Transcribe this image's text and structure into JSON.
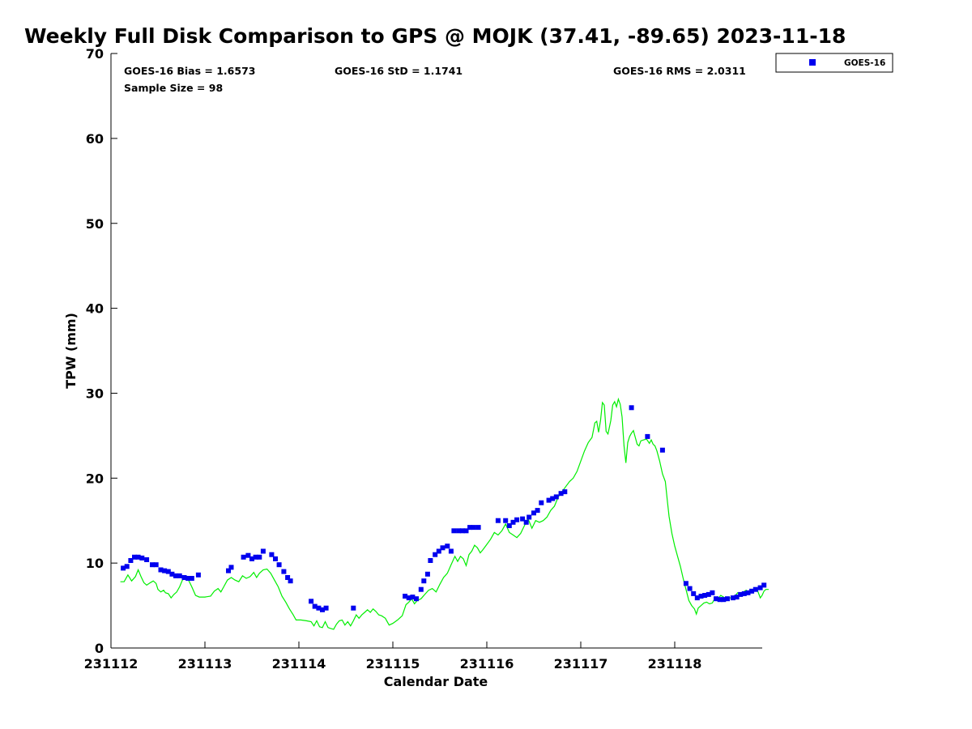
{
  "chart_data": {
    "type": "scatter",
    "title": "Weekly Full Disk Comparison to GPS @ MOJK (37.41, -89.65) 2023-11-18",
    "xlabel": "Calendar Date",
    "ylabel": "TPW (mm)",
    "x_unit": "days since 231112 00Z",
    "xlim": [
      0,
      6.95
    ],
    "ylim": [
      0,
      70
    ],
    "x_ticks": [
      0,
      1,
      2,
      3,
      4,
      5,
      6
    ],
    "x_tick_labels": [
      "231112",
      "231113",
      "231114",
      "231115",
      "231116",
      "231117",
      "231118"
    ],
    "y_ticks": [
      0,
      10,
      20,
      30,
      40,
      50,
      60,
      70
    ],
    "y_tick_labels": [
      "0",
      "10",
      "20",
      "30",
      "40",
      "50",
      "60",
      "70"
    ],
    "stats": {
      "bias": "GOES-16 Bias = 1.6573",
      "std": "GOES-16 StD = 1.1741",
      "rms": "GOES-16 RMS = 2.0311",
      "sample": "Sample Size = 98"
    },
    "legend": {
      "position": "outside-top-right",
      "entries": [
        "GOES-16"
      ]
    },
    "grid": false,
    "series": [
      {
        "name": "GOES-16",
        "kind": "markers",
        "marker": "square",
        "color": "#0000ee",
        "points": [
          [
            0.13,
            9.4
          ],
          [
            0.17,
            9.6
          ],
          [
            0.21,
            10.3
          ],
          [
            0.25,
            10.7
          ],
          [
            0.29,
            10.7
          ],
          [
            0.33,
            10.6
          ],
          [
            0.38,
            10.4
          ],
          [
            0.44,
            9.8
          ],
          [
            0.48,
            9.8
          ],
          [
            0.53,
            9.2
          ],
          [
            0.57,
            9.1
          ],
          [
            0.61,
            9.0
          ],
          [
            0.65,
            8.7
          ],
          [
            0.69,
            8.5
          ],
          [
            0.73,
            8.5
          ],
          [
            0.78,
            8.3
          ],
          [
            0.82,
            8.2
          ],
          [
            0.86,
            8.2
          ],
          [
            0.93,
            8.6
          ],
          [
            1.25,
            9.1
          ],
          [
            1.28,
            9.5
          ],
          [
            1.41,
            10.7
          ],
          [
            1.46,
            10.9
          ],
          [
            1.5,
            10.5
          ],
          [
            1.54,
            10.7
          ],
          [
            1.58,
            10.7
          ],
          [
            1.62,
            11.4
          ],
          [
            1.71,
            11.0
          ],
          [
            1.75,
            10.5
          ],
          [
            1.79,
            9.8
          ],
          [
            1.84,
            9.0
          ],
          [
            1.88,
            8.3
          ],
          [
            1.91,
            7.9
          ],
          [
            2.13,
            5.5
          ],
          [
            2.17,
            4.9
          ],
          [
            2.21,
            4.7
          ],
          [
            2.25,
            4.5
          ],
          [
            2.29,
            4.7
          ],
          [
            2.58,
            4.7
          ],
          [
            3.13,
            6.1
          ],
          [
            3.17,
            5.9
          ],
          [
            3.21,
            6.0
          ],
          [
            3.25,
            5.8
          ],
          [
            3.3,
            6.9
          ],
          [
            3.33,
            7.9
          ],
          [
            3.37,
            8.7
          ],
          [
            3.4,
            10.3
          ],
          [
            3.45,
            11.0
          ],
          [
            3.49,
            11.4
          ],
          [
            3.53,
            11.8
          ],
          [
            3.58,
            12.0
          ],
          [
            3.62,
            11.4
          ],
          [
            3.65,
            13.8
          ],
          [
            3.7,
            13.8
          ],
          [
            3.74,
            13.8
          ],
          [
            3.78,
            13.8
          ],
          [
            3.82,
            14.2
          ],
          [
            3.86,
            14.2
          ],
          [
            3.91,
            14.2
          ],
          [
            4.12,
            15.0
          ],
          [
            4.2,
            15.0
          ],
          [
            4.24,
            14.4
          ],
          [
            4.28,
            14.8
          ],
          [
            4.32,
            15.1
          ],
          [
            4.38,
            15.2
          ],
          [
            4.42,
            14.8
          ],
          [
            4.45,
            15.4
          ],
          [
            4.5,
            15.9
          ],
          [
            4.54,
            16.2
          ],
          [
            4.58,
            17.1
          ],
          [
            4.66,
            17.4
          ],
          [
            4.7,
            17.6
          ],
          [
            4.74,
            17.8
          ],
          [
            4.79,
            18.2
          ],
          [
            4.83,
            18.4
          ],
          [
            5.54,
            28.3
          ],
          [
            5.71,
            24.9
          ],
          [
            5.87,
            23.3
          ],
          [
            6.12,
            7.6
          ],
          [
            6.16,
            7.0
          ],
          [
            6.2,
            6.4
          ],
          [
            6.24,
            5.9
          ],
          [
            6.28,
            6.1
          ],
          [
            6.32,
            6.2
          ],
          [
            6.36,
            6.3
          ],
          [
            6.4,
            6.5
          ],
          [
            6.44,
            5.8
          ],
          [
            6.48,
            5.7
          ],
          [
            6.52,
            5.7
          ],
          [
            6.56,
            5.8
          ],
          [
            6.62,
            5.9
          ],
          [
            6.66,
            6.0
          ],
          [
            6.7,
            6.3
          ],
          [
            6.74,
            6.4
          ],
          [
            6.78,
            6.5
          ],
          [
            6.82,
            6.7
          ],
          [
            6.86,
            6.9
          ],
          [
            6.91,
            7.1
          ],
          [
            6.95,
            7.4
          ]
        ]
      },
      {
        "name": "GPS",
        "kind": "line",
        "color": "#00ee00",
        "points": [
          [
            0.1,
            7.8
          ],
          [
            0.14,
            7.8
          ],
          [
            0.18,
            8.6
          ],
          [
            0.22,
            7.9
          ],
          [
            0.26,
            8.4
          ],
          [
            0.29,
            9.2
          ],
          [
            0.32,
            8.4
          ],
          [
            0.35,
            7.7
          ],
          [
            0.38,
            7.4
          ],
          [
            0.42,
            7.7
          ],
          [
            0.45,
            7.9
          ],
          [
            0.48,
            7.6
          ],
          [
            0.5,
            6.9
          ],
          [
            0.53,
            6.6
          ],
          [
            0.56,
            6.8
          ],
          [
            0.58,
            6.5
          ],
          [
            0.61,
            6.4
          ],
          [
            0.64,
            5.9
          ],
          [
            0.67,
            6.3
          ],
          [
            0.7,
            6.6
          ],
          [
            0.73,
            7.2
          ],
          [
            0.76,
            8.0
          ],
          [
            0.8,
            8.3
          ],
          [
            0.83,
            7.9
          ],
          [
            0.86,
            7.2
          ],
          [
            0.9,
            6.2
          ],
          [
            0.94,
            6.0
          ],
          [
            1.0,
            6.0
          ],
          [
            1.06,
            6.1
          ],
          [
            1.1,
            6.7
          ],
          [
            1.14,
            7.0
          ],
          [
            1.17,
            6.6
          ],
          [
            1.2,
            7.2
          ],
          [
            1.24,
            8.0
          ],
          [
            1.28,
            8.3
          ],
          [
            1.32,
            8.0
          ],
          [
            1.36,
            7.8
          ],
          [
            1.4,
            8.5
          ],
          [
            1.44,
            8.2
          ],
          [
            1.48,
            8.4
          ],
          [
            1.52,
            8.9
          ],
          [
            1.55,
            8.3
          ],
          [
            1.58,
            8.8
          ],
          [
            1.62,
            9.2
          ],
          [
            1.66,
            9.3
          ],
          [
            1.7,
            8.8
          ],
          [
            1.74,
            8.0
          ],
          [
            1.78,
            7.2
          ],
          [
            1.82,
            6.1
          ],
          [
            1.86,
            5.4
          ],
          [
            1.9,
            4.6
          ],
          [
            1.94,
            3.9
          ],
          [
            1.97,
            3.3
          ],
          [
            2.02,
            3.3
          ],
          [
            2.08,
            3.2
          ],
          [
            2.13,
            3.1
          ],
          [
            2.16,
            2.6
          ],
          [
            2.19,
            3.2
          ],
          [
            2.22,
            2.5
          ],
          [
            2.25,
            2.4
          ],
          [
            2.28,
            3.1
          ],
          [
            2.31,
            2.4
          ],
          [
            2.34,
            2.3
          ],
          [
            2.37,
            2.2
          ],
          [
            2.4,
            2.8
          ],
          [
            2.43,
            3.2
          ],
          [
            2.46,
            3.3
          ],
          [
            2.49,
            2.7
          ],
          [
            2.52,
            3.1
          ],
          [
            2.55,
            2.6
          ],
          [
            2.58,
            3.2
          ],
          [
            2.61,
            3.9
          ],
          [
            2.64,
            3.5
          ],
          [
            2.67,
            3.9
          ],
          [
            2.7,
            4.2
          ],
          [
            2.73,
            4.5
          ],
          [
            2.76,
            4.2
          ],
          [
            2.79,
            4.6
          ],
          [
            2.82,
            4.3
          ],
          [
            2.85,
            3.9
          ],
          [
            2.88,
            3.8
          ],
          [
            2.92,
            3.5
          ],
          [
            2.96,
            2.7
          ],
          [
            3.0,
            2.9
          ],
          [
            3.05,
            3.3
          ],
          [
            3.1,
            3.8
          ],
          [
            3.14,
            5.1
          ],
          [
            3.17,
            5.4
          ],
          [
            3.2,
            5.8
          ],
          [
            3.23,
            5.2
          ],
          [
            3.26,
            5.6
          ],
          [
            3.3,
            5.8
          ],
          [
            3.34,
            6.3
          ],
          [
            3.38,
            6.8
          ],
          [
            3.42,
            7.0
          ],
          [
            3.46,
            6.6
          ],
          [
            3.5,
            7.5
          ],
          [
            3.54,
            8.3
          ],
          [
            3.58,
            8.8
          ],
          [
            3.62,
            9.8
          ],
          [
            3.66,
            10.8
          ],
          [
            3.69,
            10.2
          ],
          [
            3.72,
            10.8
          ],
          [
            3.75,
            10.5
          ],
          [
            3.78,
            9.7
          ],
          [
            3.81,
            11.0
          ],
          [
            3.84,
            11.4
          ],
          [
            3.87,
            12.1
          ],
          [
            3.9,
            11.8
          ],
          [
            3.93,
            11.2
          ],
          [
            3.96,
            11.6
          ],
          [
            4.0,
            12.2
          ],
          [
            4.04,
            12.8
          ],
          [
            4.08,
            13.6
          ],
          [
            4.12,
            13.3
          ],
          [
            4.16,
            13.8
          ],
          [
            4.2,
            14.6
          ],
          [
            4.24,
            13.6
          ],
          [
            4.28,
            13.3
          ],
          [
            4.32,
            13.0
          ],
          [
            4.36,
            13.5
          ],
          [
            4.4,
            14.4
          ],
          [
            4.44,
            15.2
          ],
          [
            4.48,
            14.1
          ],
          [
            4.52,
            15.0
          ],
          [
            4.56,
            14.8
          ],
          [
            4.6,
            15.0
          ],
          [
            4.64,
            15.4
          ],
          [
            4.68,
            16.2
          ],
          [
            4.72,
            16.7
          ],
          [
            4.76,
            17.8
          ],
          [
            4.8,
            18.4
          ],
          [
            4.84,
            19.0
          ],
          [
            4.88,
            19.6
          ],
          [
            4.92,
            20.0
          ],
          [
            4.96,
            20.8
          ],
          [
            5.0,
            22.0
          ],
          [
            5.04,
            23.2
          ],
          [
            5.08,
            24.2
          ],
          [
            5.12,
            24.8
          ],
          [
            5.15,
            26.5
          ],
          [
            5.17,
            26.7
          ],
          [
            5.19,
            25.4
          ],
          [
            5.21,
            26.8
          ],
          [
            5.23,
            28.9
          ],
          [
            5.25,
            28.6
          ],
          [
            5.27,
            25.5
          ],
          [
            5.29,
            25.2
          ],
          [
            5.32,
            26.8
          ],
          [
            5.34,
            28.6
          ],
          [
            5.36,
            29.0
          ],
          [
            5.38,
            28.4
          ],
          [
            5.4,
            29.3
          ],
          [
            5.42,
            28.7
          ],
          [
            5.44,
            27.2
          ],
          [
            5.46,
            23.8
          ],
          [
            5.48,
            21.8
          ],
          [
            5.5,
            24.2
          ],
          [
            5.52,
            24.9
          ],
          [
            5.54,
            25.3
          ],
          [
            5.56,
            25.6
          ],
          [
            5.58,
            24.8
          ],
          [
            5.6,
            24.0
          ],
          [
            5.62,
            23.8
          ],
          [
            5.64,
            24.4
          ],
          [
            5.67,
            24.5
          ],
          [
            5.7,
            24.6
          ],
          [
            5.73,
            24.1
          ],
          [
            5.75,
            24.5
          ],
          [
            5.77,
            24.0
          ],
          [
            5.79,
            23.8
          ],
          [
            5.81,
            23.2
          ],
          [
            5.84,
            22.0
          ],
          [
            5.87,
            20.5
          ],
          [
            5.9,
            19.6
          ],
          [
            5.92,
            17.5
          ],
          [
            5.94,
            15.5
          ],
          [
            5.97,
            13.5
          ],
          [
            6.0,
            12.0
          ],
          [
            6.03,
            10.8
          ],
          [
            6.06,
            9.6
          ],
          [
            6.09,
            8.2
          ],
          [
            6.12,
            6.9
          ],
          [
            6.15,
            5.6
          ],
          [
            6.18,
            5.0
          ],
          [
            6.21,
            4.6
          ],
          [
            6.23,
            4.0
          ],
          [
            6.25,
            4.7
          ],
          [
            6.28,
            5.0
          ],
          [
            6.31,
            5.3
          ],
          [
            6.34,
            5.4
          ],
          [
            6.37,
            5.2
          ],
          [
            6.4,
            5.3
          ],
          [
            6.43,
            5.9
          ],
          [
            6.46,
            5.8
          ],
          [
            6.49,
            6.2
          ],
          [
            6.52,
            6.0
          ],
          [
            6.55,
            5.7
          ],
          [
            6.58,
            5.9
          ],
          [
            6.61,
            5.9
          ],
          [
            6.64,
            6.1
          ],
          [
            6.67,
            6.5
          ],
          [
            6.7,
            6.3
          ],
          [
            6.73,
            6.6
          ],
          [
            6.76,
            6.8
          ],
          [
            6.79,
            6.4
          ],
          [
            6.82,
            6.8
          ],
          [
            6.85,
            7.0
          ],
          [
            6.88,
            6.8
          ],
          [
            6.91,
            5.9
          ],
          [
            6.93,
            6.2
          ],
          [
            6.95,
            6.7
          ],
          [
            6.97,
            6.9
          ],
          [
            7.0,
            6.9
          ]
        ]
      }
    ]
  }
}
